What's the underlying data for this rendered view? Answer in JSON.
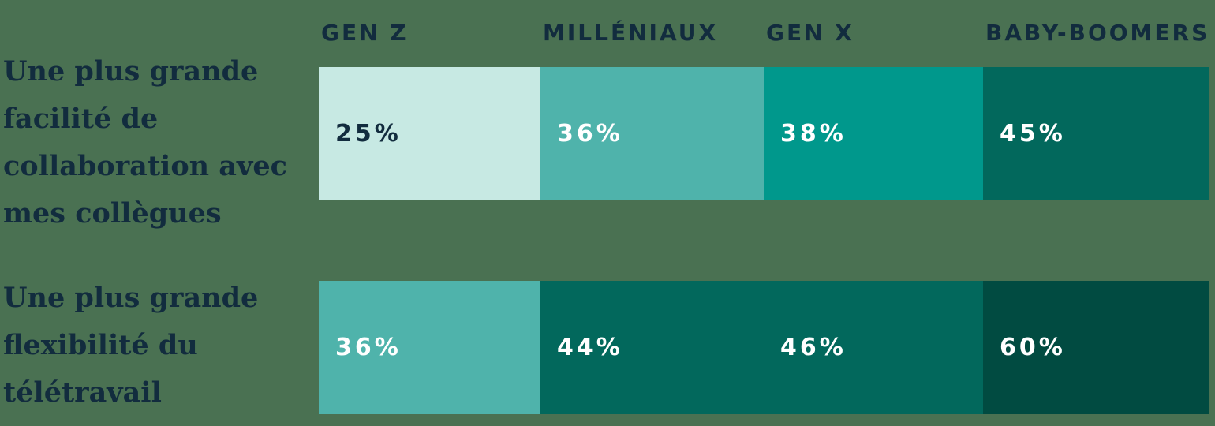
{
  "colors": {
    "background": "#4A7152",
    "text_dark": "#122C3E",
    "text_light": "#FFFFFF",
    "value_scale": {
      "25": "#C7E9E3",
      "36": "#4FB3AB",
      "38": "#00988C",
      "44_to_46": "#02685C",
      "60": "#014B41"
    }
  },
  "headers": [
    "GEN Z",
    "MILLÉNIAUX",
    "GEN X",
    "BABY-BOOMERS"
  ],
  "rows": [
    {
      "label": "Une plus grande facilité de collaboration avec mes collègues",
      "label_lines": [
        "Une plus grande",
        "facilité de",
        "collaboration avec",
        "mes collègues"
      ],
      "segments": [
        {
          "value": "25%",
          "color": "#C7E9E3",
          "text_color": "#122C3E"
        },
        {
          "value": "36%",
          "color": "#4FB3AB",
          "text_color": "#FFFFFF"
        },
        {
          "value": "38%",
          "color": "#00988C",
          "text_color": "#FFFFFF"
        },
        {
          "value": "45%",
          "color": "#02685C",
          "text_color": "#FFFFFF"
        }
      ]
    },
    {
      "label": "Une plus grande flexibilité du télétravail",
      "label_lines": [
        "Une plus grande",
        "flexibilité du",
        "télétravail"
      ],
      "segments": [
        {
          "value": "36%",
          "color": "#4FB3AB",
          "text_color": "#FFFFFF"
        },
        {
          "value": "44%",
          "color": "#02685C",
          "text_color": "#FFFFFF"
        },
        {
          "value": "46%",
          "color": "#02685C",
          "text_color": "#FFFFFF"
        },
        {
          "value": "60%",
          "color": "#014B41",
          "text_color": "#FFFFFF"
        }
      ]
    }
  ],
  "chart_data": {
    "type": "heatmap",
    "unit": "%",
    "columns": [
      "GEN Z",
      "MILLÉNIAUX",
      "GEN X",
      "BABY-BOOMERS"
    ],
    "rows": [
      {
        "label": "Une plus grande facilité de collaboration avec mes collègues",
        "values": [
          25,
          36,
          38,
          45
        ]
      },
      {
        "label": "Une plus grande flexibilité du télétravail",
        "values": [
          36,
          44,
          46,
          60
        ]
      }
    ],
    "color_scale": [
      {
        "value": 25,
        "color": "#C7E9E3"
      },
      {
        "value": 36,
        "color": "#4FB3AB"
      },
      {
        "value": 38,
        "color": "#00988C"
      },
      {
        "value": 44,
        "color": "#02685C"
      },
      {
        "value": 45,
        "color": "#02685C"
      },
      {
        "value": 46,
        "color": "#02685C"
      },
      {
        "value": 60,
        "color": "#014B41"
      }
    ],
    "title": "",
    "legend": "none",
    "grid": false,
    "cell_width": "equal",
    "value_labels": "inside-left"
  }
}
